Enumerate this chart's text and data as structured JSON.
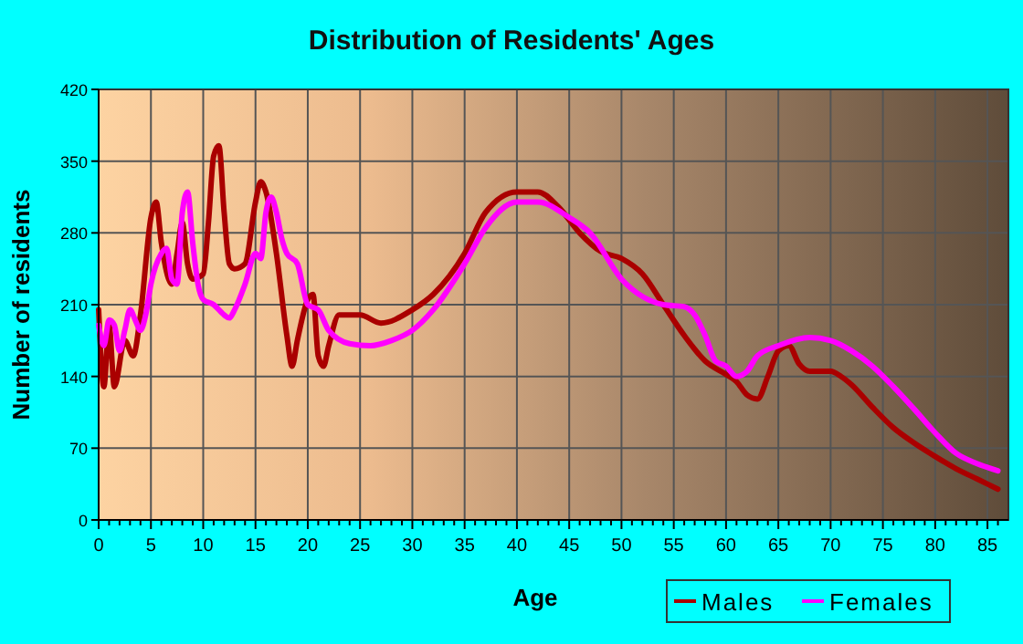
{
  "chart_data": {
    "type": "line",
    "title": "Distribution of Residents' Ages",
    "xlabel": "Age",
    "ylabel": "Number of residents",
    "xlim": [
      0,
      87
    ],
    "ylim": [
      0,
      420
    ],
    "xticks": [
      0,
      {
        "value": 1,
        "label": null
      },
      {
        "value": 2,
        "label": null
      },
      {
        "value": 3,
        "label": null
      },
      {
        "value": 4,
        "label": null
      },
      5,
      {
        "value": 6,
        "label": null
      },
      {
        "value": 7,
        "label": null
      },
      {
        "value": 8,
        "label": null
      },
      {
        "value": 9,
        "label": null
      },
      10,
      {
        "value": 11,
        "label": null
      },
      {
        "value": 12,
        "label": null
      },
      {
        "value": 13,
        "label": null
      },
      {
        "value": 14,
        "label": null
      },
      15,
      {
        "value": 16,
        "label": null
      },
      {
        "value": 17,
        "label": null
      },
      {
        "value": 18,
        "label": null
      },
      {
        "value": 19,
        "label": null
      },
      20,
      {
        "value": 21,
        "label": null
      },
      {
        "value": 22,
        "label": null
      },
      {
        "value": 23,
        "label": null
      },
      {
        "value": 24,
        "label": null
      },
      25,
      {
        "value": 26,
        "label": null
      },
      {
        "value": 27,
        "label": null
      },
      {
        "value": 28,
        "label": null
      },
      {
        "value": 29,
        "label": null
      },
      30,
      {
        "value": 31,
        "label": null
      },
      {
        "value": 32,
        "label": null
      },
      {
        "value": 33,
        "label": null
      },
      {
        "value": 34,
        "label": null
      },
      35,
      {
        "value": 36,
        "label": null
      },
      {
        "value": 37,
        "label": null
      },
      {
        "value": 38,
        "label": null
      },
      {
        "value": 39,
        "label": null
      },
      40,
      {
        "value": 41,
        "label": null
      },
      {
        "value": 42,
        "label": null
      },
      {
        "value": 43,
        "label": null
      },
      {
        "value": 44,
        "label": null
      },
      45,
      {
        "value": 46,
        "label": null
      },
      {
        "value": 47,
        "label": null
      },
      {
        "value": 48,
        "label": null
      },
      {
        "value": 49,
        "label": null
      },
      50,
      {
        "value": 51,
        "label": null
      },
      {
        "value": 52,
        "label": null
      },
      {
        "value": 53,
        "label": null
      },
      {
        "value": 54,
        "label": null
      },
      55,
      {
        "value": 56,
        "label": null
      },
      {
        "value": 57,
        "label": null
      },
      {
        "value": 58,
        "label": null
      },
      {
        "value": 59,
        "label": null
      },
      60,
      {
        "value": 61,
        "label": null
      },
      {
        "value": 62,
        "label": null
      },
      {
        "value": 63,
        "label": null
      },
      {
        "value": 64,
        "label": null
      },
      65,
      {
        "value": 66,
        "label": null
      },
      {
        "value": 67,
        "label": null
      },
      {
        "value": 68,
        "label": null
      },
      {
        "value": 69,
        "label": null
      },
      70,
      {
        "value": 71,
        "label": null
      },
      {
        "value": 72,
        "label": null
      },
      {
        "value": 73,
        "label": null
      },
      {
        "value": 74,
        "label": null
      },
      75,
      {
        "value": 76,
        "label": null
      },
      {
        "value": 77,
        "label": null
      },
      {
        "value": 78,
        "label": null
      },
      {
        "value": 79,
        "label": null
      },
      80,
      {
        "value": 81,
        "label": null
      },
      {
        "value": 82,
        "label": null
      },
      {
        "value": 83,
        "label": null
      },
      {
        "value": 84,
        "label": null
      },
      85,
      {
        "value": 86,
        "label": null
      }
    ],
    "yticks": [
      0,
      70,
      140,
      210,
      280,
      350,
      420
    ],
    "grid": true,
    "legend": "bottom right",
    "marker": "none",
    "line_style": "solid",
    "series": [
      {
        "name": "Males",
        "color": "#aa0000",
        "x": [
          0,
          0.5,
          1,
          1.5,
          2.5,
          3.3,
          4,
          5,
          5.5,
          6,
          7,
          7.5,
          8,
          8.5,
          9,
          10,
          10.5,
          11,
          11.5,
          12,
          12.5,
          13,
          14,
          15,
          15.5,
          16,
          17,
          18,
          18.5,
          19,
          20,
          20.5,
          21,
          21.5,
          22,
          23,
          24,
          25,
          27,
          30,
          32,
          35,
          37,
          40,
          42,
          44,
          46,
          48,
          50,
          52,
          54,
          56,
          58,
          60,
          61,
          62,
          63,
          64,
          65,
          66,
          67,
          68,
          70,
          71,
          72,
          74,
          76,
          78,
          80,
          82,
          84,
          86
        ],
        "values": [
          205,
          130,
          190,
          130,
          175,
          160,
          200,
          295,
          310,
          270,
          230,
          260,
          290,
          250,
          235,
          240,
          290,
          355,
          365,
          300,
          250,
          245,
          250,
          310,
          330,
          320,
          260,
          180,
          150,
          175,
          215,
          220,
          160,
          150,
          170,
          200,
          200,
          200,
          192,
          205,
          220,
          260,
          300,
          320,
          320,
          305,
          280,
          262,
          255,
          240,
          210,
          180,
          155,
          142,
          135,
          122,
          118,
          140,
          165,
          170,
          152,
          145,
          145,
          140,
          132,
          110,
          90,
          75,
          62,
          50,
          40,
          30
        ]
      },
      {
        "name": "Females",
        "color": "#ff00ff",
        "x": [
          0,
          0.5,
          1,
          1.5,
          2,
          2.5,
          3,
          3.5,
          4,
          4.5,
          5,
          6,
          6.5,
          7,
          7.5,
          8,
          8.5,
          9,
          9.5,
          10,
          11,
          12,
          12.5,
          13,
          14,
          15,
          15.5,
          16,
          16.5,
          17,
          17.5,
          18,
          19,
          20,
          21,
          22,
          24,
          26,
          28,
          30,
          32,
          35,
          37,
          40,
          42,
          45,
          47,
          50,
          52,
          54,
          56,
          57,
          58,
          59,
          60,
          61,
          62,
          63,
          65,
          68,
          70,
          72,
          74,
          76,
          78,
          80,
          82,
          84,
          86
        ],
        "values": [
          190,
          170,
          195,
          190,
          165,
          185,
          205,
          195,
          185,
          200,
          230,
          260,
          265,
          235,
          230,
          300,
          320,
          270,
          230,
          215,
          210,
          200,
          197,
          205,
          230,
          260,
          255,
          300,
          315,
          300,
          275,
          260,
          250,
          210,
          205,
          185,
          172,
          170,
          175,
          185,
          205,
          250,
          285,
          310,
          310,
          295,
          280,
          235,
          218,
          210,
          208,
          200,
          180,
          155,
          150,
          140,
          145,
          160,
          170,
          178,
          175,
          165,
          150,
          130,
          108,
          85,
          65,
          55,
          48
        ]
      }
    ]
  }
}
